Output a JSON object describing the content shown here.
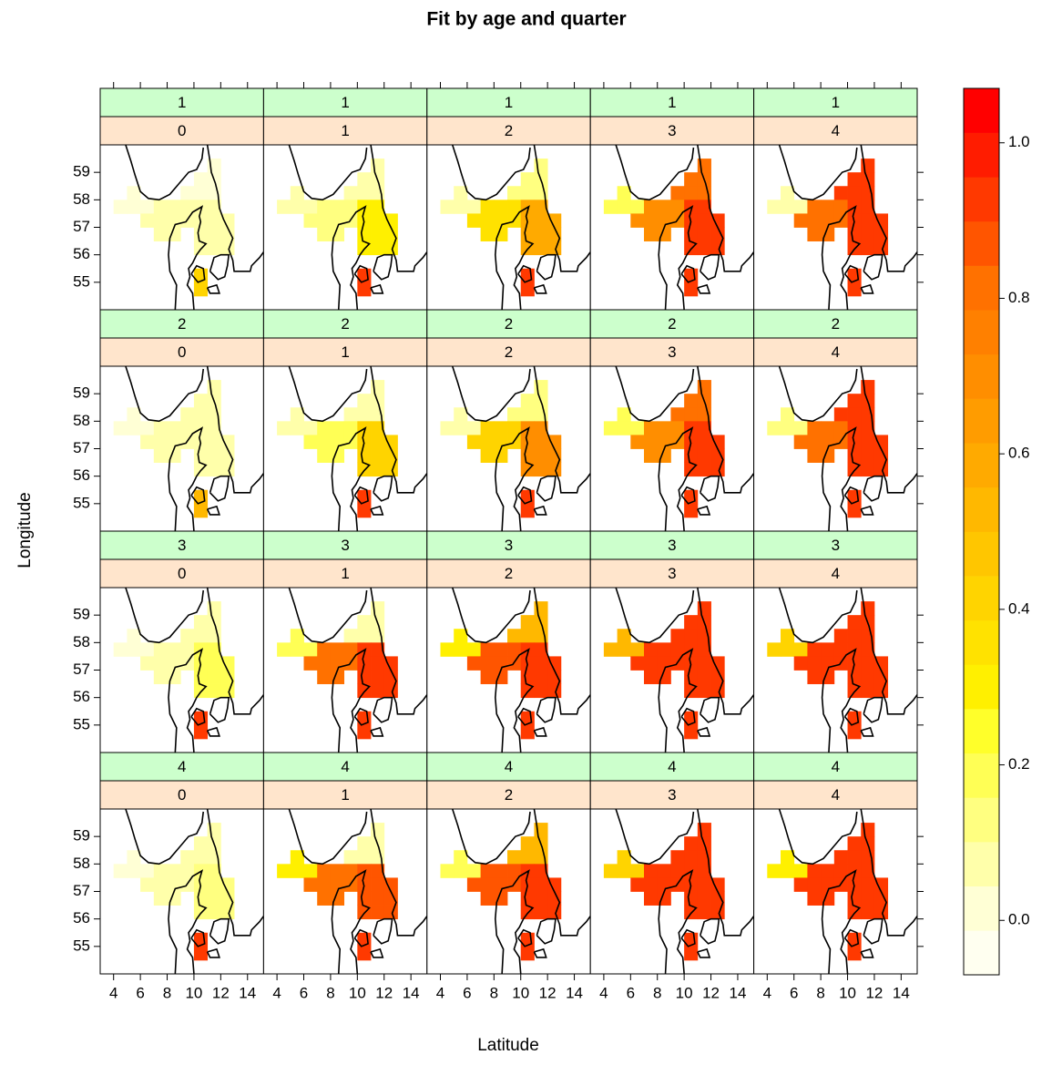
{
  "chart_data": {
    "type": "levelplot",
    "title": "Fit by age and quarter",
    "x_label": "Latitude",
    "y_label": "Longitude",
    "xlim": [
      3,
      15.2
    ],
    "ylim": [
      54,
      60
    ],
    "xticks": [
      4,
      6,
      8,
      10,
      12,
      14
    ],
    "yticks": [
      55,
      56,
      57,
      58,
      59
    ],
    "cells": {
      "lon": [
        11.5,
        10.5,
        11.5,
        5.5,
        9.5,
        10.5,
        11.5,
        4.5,
        5.5,
        6.5,
        7.5,
        8.5,
        9.5,
        10.5,
        11.5,
        6.5,
        7.5,
        8.5,
        9.5,
        10.5,
        11.5,
        12.5,
        7.5,
        8.5,
        10.5,
        11.5,
        12.5,
        10.5,
        11.5,
        12.5,
        10.5,
        10.5
      ],
      "lat": [
        59.25,
        58.75,
        58.75,
        58.25,
        58.25,
        58.25,
        58.25,
        57.75,
        57.75,
        57.75,
        57.75,
        57.75,
        57.75,
        57.75,
        57.75,
        57.25,
        57.25,
        57.25,
        57.25,
        57.25,
        57.25,
        57.25,
        56.75,
        56.75,
        56.75,
        56.75,
        56.75,
        56.25,
        56.25,
        56.25,
        55.25,
        54.75
      ]
    },
    "panels": [
      {
        "quarter": 1,
        "age": 0,
        "values": [
          0,
          0,
          0,
          0,
          0,
          0,
          0,
          0,
          0,
          0,
          0.05,
          0.05,
          0.05,
          0.1,
          0.1,
          0.05,
          0.05,
          0.05,
          0.05,
          0.1,
          0.1,
          0.1,
          0.05,
          0.05,
          0.1,
          0.1,
          0.1,
          0.1,
          0.1,
          0.1,
          0.4,
          0.4
        ]
      },
      {
        "quarter": 1,
        "age": 1,
        "values": [
          0.05,
          0.05,
          0.05,
          0.05,
          0.05,
          0.05,
          0.05,
          0.05,
          0.05,
          0.05,
          0.15,
          0.15,
          0.15,
          0.3,
          0.3,
          0.15,
          0.15,
          0.15,
          0.15,
          0.3,
          0.3,
          0.3,
          0.15,
          0.15,
          0.3,
          0.3,
          0.3,
          0.3,
          0.3,
          0.3,
          0.9,
          0.9
        ]
      },
      {
        "quarter": 1,
        "age": 2,
        "values": [
          0.15,
          0.15,
          0.15,
          0.1,
          0.15,
          0.15,
          0.15,
          0.1,
          0.1,
          0.1,
          0.35,
          0.35,
          0.35,
          0.6,
          0.6,
          0.35,
          0.35,
          0.35,
          0.35,
          0.6,
          0.6,
          0.6,
          0.35,
          0.35,
          0.6,
          0.6,
          0.6,
          0.6,
          0.6,
          0.6,
          0.9,
          0.9
        ]
      },
      {
        "quarter": 1,
        "age": 3,
        "values": [
          0.8,
          0.8,
          0.8,
          0.2,
          0.8,
          0.8,
          0.8,
          0.2,
          0.2,
          0.2,
          0.7,
          0.7,
          0.7,
          0.9,
          0.9,
          0.7,
          0.7,
          0.7,
          0.7,
          0.9,
          0.9,
          0.9,
          0.7,
          0.7,
          0.9,
          0.9,
          0.9,
          0.9,
          0.9,
          0.9,
          0.95,
          0.95
        ]
      },
      {
        "quarter": 1,
        "age": 4,
        "values": [
          0.9,
          0.9,
          0.9,
          0.1,
          0.9,
          0.9,
          0.9,
          0.1,
          0.1,
          0.1,
          0.8,
          0.8,
          0.8,
          0.95,
          0.95,
          0.8,
          0.8,
          0.8,
          0.8,
          0.95,
          0.95,
          0.95,
          0.8,
          0.8,
          0.95,
          0.95,
          0.95,
          0.95,
          0.95,
          0.95,
          0.95,
          0.95
        ]
      },
      {
        "quarter": 2,
        "age": 0,
        "values": [
          0.05,
          0.05,
          0.05,
          0,
          0.05,
          0.05,
          0.05,
          0,
          0,
          0,
          0.05,
          0.05,
          0.05,
          0.1,
          0.1,
          0.05,
          0.05,
          0.05,
          0.05,
          0.1,
          0.1,
          0.1,
          0.05,
          0.05,
          0.1,
          0.1,
          0.1,
          0.1,
          0.1,
          0.1,
          0.5,
          0.5
        ]
      },
      {
        "quarter": 2,
        "age": 1,
        "values": [
          0.1,
          0.1,
          0.1,
          0.05,
          0.1,
          0.1,
          0.1,
          0.05,
          0.05,
          0.05,
          0.2,
          0.2,
          0.2,
          0.4,
          0.4,
          0.2,
          0.2,
          0.2,
          0.2,
          0.4,
          0.4,
          0.4,
          0.2,
          0.2,
          0.4,
          0.4,
          0.4,
          0.4,
          0.4,
          0.4,
          0.9,
          0.9
        ]
      },
      {
        "quarter": 2,
        "age": 2,
        "values": [
          0.15,
          0.15,
          0.15,
          0.1,
          0.15,
          0.15,
          0.15,
          0.1,
          0.1,
          0.1,
          0.4,
          0.4,
          0.4,
          0.7,
          0.7,
          0.4,
          0.4,
          0.4,
          0.4,
          0.7,
          0.7,
          0.7,
          0.4,
          0.4,
          0.7,
          0.7,
          0.7,
          0.7,
          0.7,
          0.7,
          0.9,
          0.9
        ]
      },
      {
        "quarter": 2,
        "age": 3,
        "values": [
          0.8,
          0.8,
          0.8,
          0.2,
          0.8,
          0.8,
          0.8,
          0.2,
          0.2,
          0.2,
          0.7,
          0.7,
          0.7,
          0.9,
          0.9,
          0.7,
          0.7,
          0.7,
          0.7,
          0.9,
          0.9,
          0.9,
          0.7,
          0.7,
          0.9,
          0.9,
          0.9,
          0.9,
          0.9,
          0.9,
          0.95,
          0.95
        ]
      },
      {
        "quarter": 2,
        "age": 4,
        "values": [
          0.9,
          0.9,
          0.9,
          0.15,
          0.9,
          0.9,
          0.9,
          0.15,
          0.15,
          0.15,
          0.8,
          0.8,
          0.8,
          0.95,
          0.95,
          0.8,
          0.8,
          0.8,
          0.8,
          0.95,
          0.95,
          0.95,
          0.8,
          0.8,
          0.95,
          0.95,
          0.95,
          0.95,
          0.95,
          0.95,
          0.95,
          0.95
        ]
      },
      {
        "quarter": 3,
        "age": 0,
        "values": [
          0.05,
          0.05,
          0.05,
          0,
          0.05,
          0.05,
          0.05,
          0,
          0,
          0,
          0.05,
          0.05,
          0.05,
          0.2,
          0.2,
          0.05,
          0.05,
          0.05,
          0.05,
          0.2,
          0.2,
          0.2,
          0.05,
          0.05,
          0.2,
          0.2,
          0.2,
          0.2,
          0.2,
          0.2,
          0.9,
          0.9
        ]
      },
      {
        "quarter": 3,
        "age": 1,
        "values": [
          0.1,
          0.1,
          0.1,
          0.2,
          0.1,
          0.1,
          0.1,
          0.2,
          0.2,
          0.2,
          0.8,
          0.8,
          0.8,
          0.9,
          0.9,
          0.8,
          0.8,
          0.8,
          0.8,
          0.9,
          0.9,
          0.9,
          0.8,
          0.8,
          0.9,
          0.9,
          0.9,
          0.9,
          0.9,
          0.9,
          0.95,
          0.95
        ]
      },
      {
        "quarter": 3,
        "age": 2,
        "values": [
          0.5,
          0.5,
          0.5,
          0.3,
          0.5,
          0.5,
          0.5,
          0.3,
          0.3,
          0.3,
          0.85,
          0.85,
          0.85,
          0.95,
          0.95,
          0.85,
          0.85,
          0.85,
          0.85,
          0.95,
          0.95,
          0.95,
          0.85,
          0.85,
          0.95,
          0.95,
          0.95,
          0.95,
          0.95,
          0.95,
          0.95,
          0.95
        ]
      },
      {
        "quarter": 3,
        "age": 3,
        "values": [
          0.95,
          0.95,
          0.95,
          0.5,
          0.95,
          0.95,
          0.95,
          0.5,
          0.5,
          0.5,
          0.95,
          0.95,
          0.95,
          0.95,
          0.95,
          0.95,
          0.95,
          0.95,
          0.95,
          0.95,
          0.95,
          0.95,
          0.95,
          0.95,
          0.95,
          0.95,
          0.95,
          0.95,
          0.95,
          0.95,
          0.95,
          0.95
        ]
      },
      {
        "quarter": 3,
        "age": 4,
        "values": [
          0.95,
          0.95,
          0.95,
          0.4,
          0.95,
          0.95,
          0.95,
          0.4,
          0.4,
          0.4,
          0.95,
          0.95,
          0.95,
          0.95,
          0.95,
          0.95,
          0.95,
          0.95,
          0.95,
          0.95,
          0.95,
          0.95,
          0.95,
          0.95,
          0.95,
          0.95,
          0.95,
          0.95,
          0.95,
          0.95,
          0.95,
          0.95
        ]
      },
      {
        "quarter": 4,
        "age": 0,
        "values": [
          0.05,
          0.05,
          0.05,
          0,
          0.05,
          0.05,
          0.05,
          0,
          0,
          0,
          0.05,
          0.05,
          0.05,
          0.15,
          0.15,
          0.05,
          0.05,
          0.05,
          0.05,
          0.15,
          0.15,
          0.15,
          0.05,
          0.05,
          0.15,
          0.15,
          0.15,
          0.15,
          0.15,
          0.15,
          0.9,
          0.9
        ]
      },
      {
        "quarter": 4,
        "age": 1,
        "values": [
          0.1,
          0.1,
          0.1,
          0.3,
          0.1,
          0.1,
          0.1,
          0.3,
          0.3,
          0.3,
          0.8,
          0.8,
          0.8,
          0.85,
          0.85,
          0.8,
          0.8,
          0.8,
          0.8,
          0.85,
          0.85,
          0.85,
          0.8,
          0.8,
          0.85,
          0.85,
          0.85,
          0.85,
          0.85,
          0.85,
          0.95,
          0.95
        ]
      },
      {
        "quarter": 4,
        "age": 2,
        "values": [
          0.5,
          0.5,
          0.5,
          0.2,
          0.5,
          0.5,
          0.5,
          0.2,
          0.2,
          0.2,
          0.85,
          0.85,
          0.85,
          0.95,
          0.95,
          0.85,
          0.85,
          0.85,
          0.85,
          0.95,
          0.95,
          0.95,
          0.85,
          0.85,
          0.95,
          0.95,
          0.95,
          0.95,
          0.95,
          0.95,
          0.95,
          0.95
        ]
      },
      {
        "quarter": 4,
        "age": 3,
        "values": [
          0.9,
          0.9,
          0.9,
          0.4,
          0.9,
          0.9,
          0.9,
          0.4,
          0.4,
          0.4,
          0.95,
          0.95,
          0.95,
          0.95,
          0.95,
          0.95,
          0.95,
          0.95,
          0.95,
          0.95,
          0.95,
          0.95,
          0.95,
          0.95,
          0.95,
          0.95,
          0.95,
          0.95,
          0.95,
          0.95,
          0.95,
          0.95
        ]
      },
      {
        "quarter": 4,
        "age": 4,
        "values": [
          0.95,
          0.95,
          0.95,
          0.3,
          0.95,
          0.95,
          0.95,
          0.3,
          0.3,
          0.3,
          0.95,
          0.95,
          0.95,
          0.95,
          0.95,
          0.95,
          0.95,
          0.95,
          0.95,
          0.95,
          0.95,
          0.95,
          0.95,
          0.95,
          0.95,
          0.95,
          0.95,
          0.95,
          0.95,
          0.95,
          0.95,
          0.95
        ]
      }
    ],
    "colorbar": {
      "zlim": [
        -0.07,
        1.07
      ],
      "ticks": [
        {
          "value": 0,
          "label": "0.0"
        },
        0.2,
        0.4,
        0.6,
        0.8,
        {
          "value": 1,
          "label": "1.0"
        }
      ],
      "colors": [
        "#FFFFF0",
        "#FFFFD5",
        "#FFFFAA",
        "#FFFF80",
        "#FFFF55",
        "#FFFF2A",
        "#FFF000",
        "#FFE200",
        "#FFD400",
        "#FFC600",
        "#FFB800",
        "#FFAA00",
        "#FF9C00",
        "#FF8E00",
        "#FF8000",
        "#FF7100",
        "#FF5500",
        "#FF3900",
        "#FF1C00",
        "#FF0000"
      ]
    },
    "strip_colors": {
      "quarter": "#CCFFCC",
      "age": "#FFE5CC"
    }
  }
}
